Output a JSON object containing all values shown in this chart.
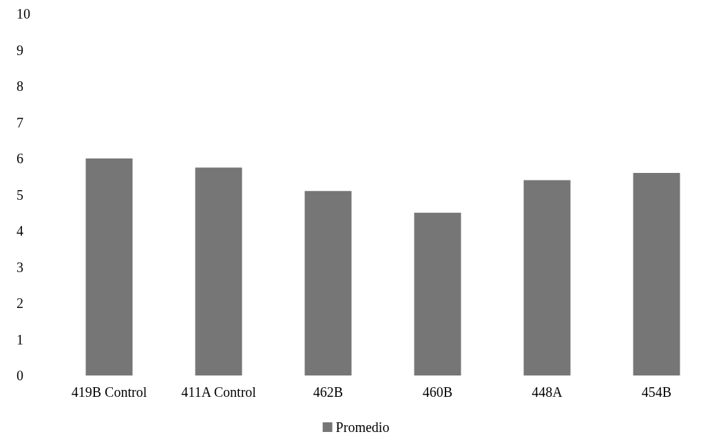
{
  "chart_data": {
    "type": "bar",
    "categories": [
      "419B Control",
      "411A Control",
      "462B",
      "460B",
      "448A",
      "454B"
    ],
    "series": [
      {
        "name": "Promedio",
        "color": "#767676",
        "values": [
          6.0,
          5.75,
          5.1,
          4.5,
          5.4,
          5.6
        ]
      }
    ],
    "ylim": [
      0,
      10
    ],
    "yticks": [
      0,
      1,
      2,
      3,
      4,
      5,
      6,
      7,
      8,
      9,
      10
    ],
    "grid": false,
    "legend": "bottom"
  }
}
